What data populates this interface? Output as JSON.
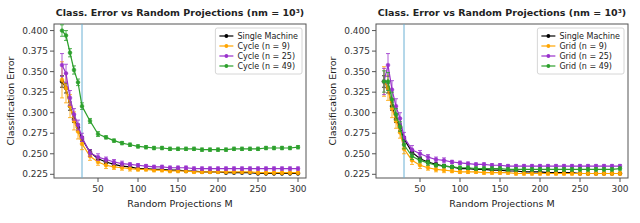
{
  "chart_data": [
    {
      "type": "line",
      "title": "Class. Error vs Random Projections (nm = 10³)",
      "xlabel": "Random Projections M",
      "ylabel": "Classification Error",
      "x": [
        5,
        10,
        15,
        20,
        25,
        30,
        40,
        50,
        60,
        70,
        80,
        90,
        100,
        110,
        120,
        130,
        140,
        150,
        160,
        170,
        180,
        190,
        200,
        210,
        220,
        230,
        240,
        250,
        260,
        270,
        280,
        290,
        300
      ],
      "xlim": [
        -5,
        310
      ],
      "ylim": [
        0.2205,
        0.408
      ],
      "xticks": [
        50,
        100,
        150,
        200,
        250,
        300
      ],
      "yticks": [
        0.225,
        {
          "value": 0.25,
          "label": "0.250"
        },
        0.275,
        {
          "value": 0.3,
          "label": "0.300"
        },
        0.325,
        {
          "value": 0.35,
          "label": "0.350"
        },
        0.375,
        {
          "value": 0.4,
          "label": "0.400"
        }
      ],
      "grid": false,
      "legend": "upper right",
      "marker": "o",
      "reference_line": {
        "x": 30,
        "color": "#6ab0d4"
      },
      "series": [
        {
          "name": "Single Machine",
          "color": "#000000",
          "values": [
            0.338,
            0.33,
            0.308,
            0.292,
            0.282,
            0.268,
            0.252,
            0.244,
            0.24,
            0.237,
            0.235,
            0.234,
            0.232,
            0.232,
            0.231,
            0.231,
            0.23,
            0.23,
            0.229,
            0.229,
            0.228,
            0.228,
            0.228,
            0.227,
            0.227,
            0.227,
            0.227,
            0.226,
            0.226,
            0.226,
            0.226,
            0.226,
            0.226
          ],
          "errors": [
            0.007,
            0.006,
            0.005,
            0.004,
            0.004,
            0.003,
            0.003,
            0.002,
            0.002,
            0.002,
            0.002,
            0.001,
            0.001,
            0.001,
            0.001,
            0.001,
            0.001,
            0.001,
            0.001,
            0.001,
            0.001,
            0.001,
            0.001,
            0.001,
            0.001,
            0.001,
            0.001,
            0.001,
            0.001,
            0.001,
            0.001,
            0.001,
            0.001
          ]
        },
        {
          "name": "Cycle (n = 9)",
          "color": "#FFA500",
          "values": [
            0.34,
            0.33,
            0.308,
            0.29,
            0.277,
            0.262,
            0.247,
            0.24,
            0.236,
            0.234,
            0.233,
            0.232,
            0.231,
            0.231,
            0.23,
            0.23,
            0.229,
            0.229,
            0.229,
            0.228,
            0.228,
            0.228,
            0.228,
            0.228,
            0.228,
            0.228,
            0.228,
            0.227,
            0.227,
            0.227,
            0.227,
            0.227,
            0.227
          ],
          "errors": [
            0.022,
            0.018,
            0.014,
            0.011,
            0.009,
            0.007,
            0.005,
            0.004,
            0.004,
            0.003,
            0.003,
            0.003,
            0.002,
            0.002,
            0.002,
            0.002,
            0.002,
            0.002,
            0.002,
            0.002,
            0.002,
            0.002,
            0.002,
            0.002,
            0.002,
            0.002,
            0.002,
            0.002,
            0.002,
            0.002,
            0.002,
            0.002,
            0.002
          ]
        },
        {
          "name": "Cycle (n = 25)",
          "color": "#9932CC",
          "values": [
            0.358,
            0.348,
            0.318,
            0.298,
            0.285,
            0.27,
            0.251,
            0.246,
            0.243,
            0.24,
            0.238,
            0.237,
            0.236,
            0.235,
            0.234,
            0.234,
            0.233,
            0.233,
            0.233,
            0.232,
            0.232,
            0.232,
            0.232,
            0.232,
            0.232,
            0.232,
            0.232,
            0.232,
            0.232,
            0.232,
            0.232,
            0.232,
            0.232
          ],
          "errors": [
            0.014,
            0.011,
            0.009,
            0.007,
            0.006,
            0.005,
            0.004,
            0.004,
            0.003,
            0.003,
            0.003,
            0.002,
            0.002,
            0.002,
            0.002,
            0.002,
            0.002,
            0.002,
            0.002,
            0.002,
            0.002,
            0.002,
            0.002,
            0.002,
            0.002,
            0.002,
            0.002,
            0.002,
            0.002,
            0.002,
            0.002,
            0.002,
            0.002
          ]
        },
        {
          "name": "Cycle (n = 49)",
          "color": "#2ca02c",
          "values": [
            0.4,
            0.394,
            0.373,
            0.352,
            0.337,
            0.308,
            0.29,
            0.274,
            0.27,
            0.266,
            0.263,
            0.261,
            0.259,
            0.258,
            0.257,
            0.257,
            0.256,
            0.256,
            0.256,
            0.256,
            0.255,
            0.255,
            0.255,
            0.255,
            0.256,
            0.256,
            0.256,
            0.256,
            0.257,
            0.257,
            0.257,
            0.257,
            0.258
          ],
          "errors": [
            0.007,
            0.006,
            0.005,
            0.005,
            0.004,
            0.004,
            0.003,
            0.003,
            0.002,
            0.002,
            0.002,
            0.002,
            0.002,
            0.002,
            0.002,
            0.002,
            0.002,
            0.002,
            0.002,
            0.002,
            0.002,
            0.002,
            0.002,
            0.002,
            0.002,
            0.002,
            0.002,
            0.002,
            0.002,
            0.002,
            0.002,
            0.002,
            0.002
          ]
        }
      ]
    },
    {
      "type": "line",
      "title": "Class. Error vs Random Projections (nm = 10³)",
      "xlabel": "Random Projections M",
      "ylabel": "Classification Error",
      "x": [
        5,
        10,
        15,
        20,
        25,
        30,
        40,
        50,
        60,
        70,
        80,
        90,
        100,
        110,
        120,
        130,
        140,
        150,
        160,
        170,
        180,
        190,
        200,
        210,
        220,
        230,
        240,
        250,
        260,
        270,
        280,
        290,
        300
      ],
      "xlim": [
        -5,
        310
      ],
      "ylim": [
        0.2205,
        0.408
      ],
      "xticks": [
        50,
        100,
        150,
        200,
        250,
        300
      ],
      "yticks": [
        0.225,
        {
          "value": 0.25,
          "label": "0.250"
        },
        0.275,
        {
          "value": 0.3,
          "label": "0.300"
        },
        0.325,
        {
          "value": 0.35,
          "label": "0.350"
        },
        0.375,
        {
          "value": 0.4,
          "label": "0.400"
        }
      ],
      "grid": false,
      "legend": "upper right",
      "marker": "o",
      "reference_line": {
        "x": 30,
        "color": "#6ab0d4"
      },
      "series": [
        {
          "name": "Single Machine",
          "color": "#000000",
          "values": [
            0.338,
            0.33,
            0.308,
            0.292,
            0.282,
            0.268,
            0.252,
            0.244,
            0.24,
            0.237,
            0.235,
            0.234,
            0.232,
            0.232,
            0.231,
            0.231,
            0.23,
            0.23,
            0.229,
            0.229,
            0.228,
            0.228,
            0.228,
            0.227,
            0.227,
            0.227,
            0.227,
            0.226,
            0.226,
            0.226,
            0.226,
            0.226,
            0.226
          ],
          "errors": [
            0.007,
            0.006,
            0.005,
            0.004,
            0.004,
            0.003,
            0.003,
            0.002,
            0.002,
            0.002,
            0.002,
            0.001,
            0.001,
            0.001,
            0.001,
            0.001,
            0.001,
            0.001,
            0.001,
            0.001,
            0.001,
            0.001,
            0.001,
            0.001,
            0.001,
            0.001,
            0.001,
            0.001,
            0.001,
            0.001,
            0.001,
            0.001,
            0.001
          ]
        },
        {
          "name": "Grid (n = 9)",
          "color": "#FFA500",
          "values": [
            0.338,
            0.33,
            0.305,
            0.29,
            0.276,
            0.256,
            0.242,
            0.236,
            0.233,
            0.231,
            0.23,
            0.229,
            0.228,
            0.228,
            0.228,
            0.227,
            0.227,
            0.227,
            0.227,
            0.226,
            0.226,
            0.226,
            0.226,
            0.226,
            0.226,
            0.226,
            0.226,
            0.226,
            0.226,
            0.226,
            0.226,
            0.226,
            0.226
          ],
          "errors": [
            0.018,
            0.015,
            0.011,
            0.009,
            0.007,
            0.006,
            0.005,
            0.004,
            0.003,
            0.003,
            0.003,
            0.002,
            0.002,
            0.002,
            0.002,
            0.002,
            0.002,
            0.002,
            0.002,
            0.002,
            0.002,
            0.002,
            0.002,
            0.002,
            0.002,
            0.002,
            0.002,
            0.002,
            0.002,
            0.002,
            0.002,
            0.002,
            0.002
          ]
        },
        {
          "name": "Grid (n = 25)",
          "color": "#9932CC",
          "values": [
            0.338,
            0.358,
            0.328,
            0.308,
            0.293,
            0.27,
            0.255,
            0.25,
            0.246,
            0.243,
            0.242,
            0.24,
            0.239,
            0.238,
            0.237,
            0.237,
            0.236,
            0.236,
            0.235,
            0.235,
            0.235,
            0.235,
            0.235,
            0.235,
            0.235,
            0.235,
            0.235,
            0.235,
            0.235,
            0.235,
            0.235,
            0.235,
            0.235
          ],
          "errors": [
            0.016,
            0.014,
            0.011,
            0.009,
            0.007,
            0.006,
            0.005,
            0.004,
            0.003,
            0.003,
            0.003,
            0.002,
            0.002,
            0.002,
            0.002,
            0.002,
            0.002,
            0.002,
            0.002,
            0.002,
            0.002,
            0.002,
            0.002,
            0.002,
            0.002,
            0.002,
            0.002,
            0.002,
            0.002,
            0.002,
            0.002,
            0.002,
            0.002
          ]
        },
        {
          "name": "Grid (n = 49)",
          "color": "#2ca02c",
          "values": [
            0.338,
            0.338,
            0.316,
            0.298,
            0.283,
            0.261,
            0.247,
            0.242,
            0.239,
            0.236,
            0.235,
            0.234,
            0.233,
            0.233,
            0.232,
            0.232,
            0.232,
            0.232,
            0.231,
            0.231,
            0.231,
            0.231,
            0.231,
            0.231,
            0.231,
            0.231,
            0.231,
            0.231,
            0.231,
            0.231,
            0.231,
            0.231,
            0.232
          ],
          "errors": [
            0.013,
            0.011,
            0.009,
            0.007,
            0.006,
            0.005,
            0.004,
            0.003,
            0.003,
            0.002,
            0.002,
            0.002,
            0.002,
            0.002,
            0.002,
            0.002,
            0.002,
            0.002,
            0.002,
            0.002,
            0.002,
            0.002,
            0.002,
            0.002,
            0.002,
            0.002,
            0.002,
            0.002,
            0.002,
            0.002,
            0.002,
            0.002,
            0.002
          ]
        }
      ]
    }
  ]
}
